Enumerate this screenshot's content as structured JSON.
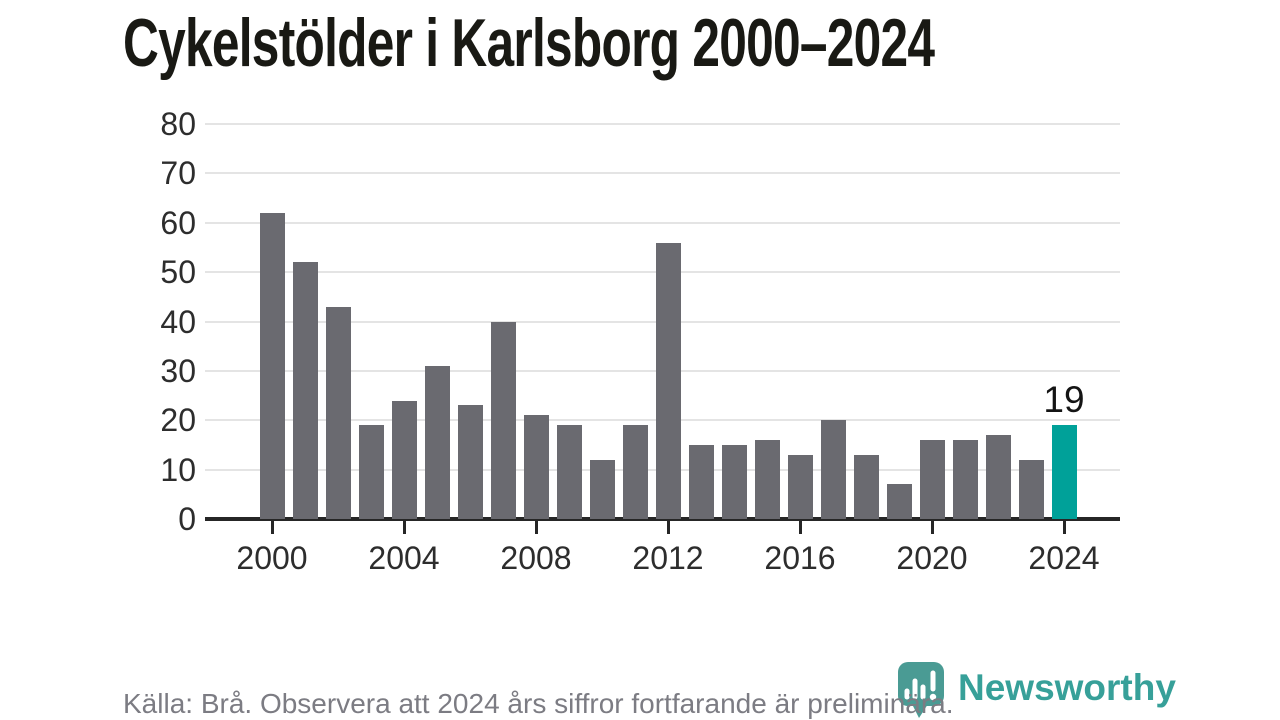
{
  "title": "Cykelstölder i Karlsborg 2000–2024",
  "chart_data": {
    "type": "bar",
    "categories": [
      2000,
      2001,
      2002,
      2003,
      2004,
      2005,
      2006,
      2007,
      2008,
      2009,
      2010,
      2011,
      2012,
      2013,
      2014,
      2015,
      2016,
      2017,
      2018,
      2019,
      2020,
      2021,
      2022,
      2023,
      2024
    ],
    "values": [
      62,
      52,
      43,
      19,
      24,
      31,
      23,
      40,
      21,
      19,
      12,
      19,
      56,
      15,
      15,
      16,
      13,
      20,
      13,
      7,
      16,
      16,
      17,
      12,
      19
    ],
    "bar_color": "#6a6a70",
    "highlight": {
      "year": 2024,
      "value": 19,
      "label": "19",
      "color": "#00a199"
    },
    "title": "Cykelstölder i Karlsborg 2000–2024",
    "xlabel": "",
    "ylabel": "",
    "ylim": [
      0,
      80
    ],
    "yticks": [
      0,
      10,
      20,
      30,
      40,
      50,
      60,
      70,
      80
    ],
    "xticks": [
      2000,
      2004,
      2008,
      2012,
      2016,
      2020,
      2024
    ],
    "grid": "horizontal",
    "legend": "none"
  },
  "footer": {
    "source": "Källa: Brå. Observera att 2024 års siffror fortfarande är preliminära."
  },
  "logo": {
    "brand": "Newsworthy",
    "icon": "newsworthy-pin-barchart-icon",
    "brand_color": "#37a099",
    "icon_color": "#4a9b94"
  }
}
